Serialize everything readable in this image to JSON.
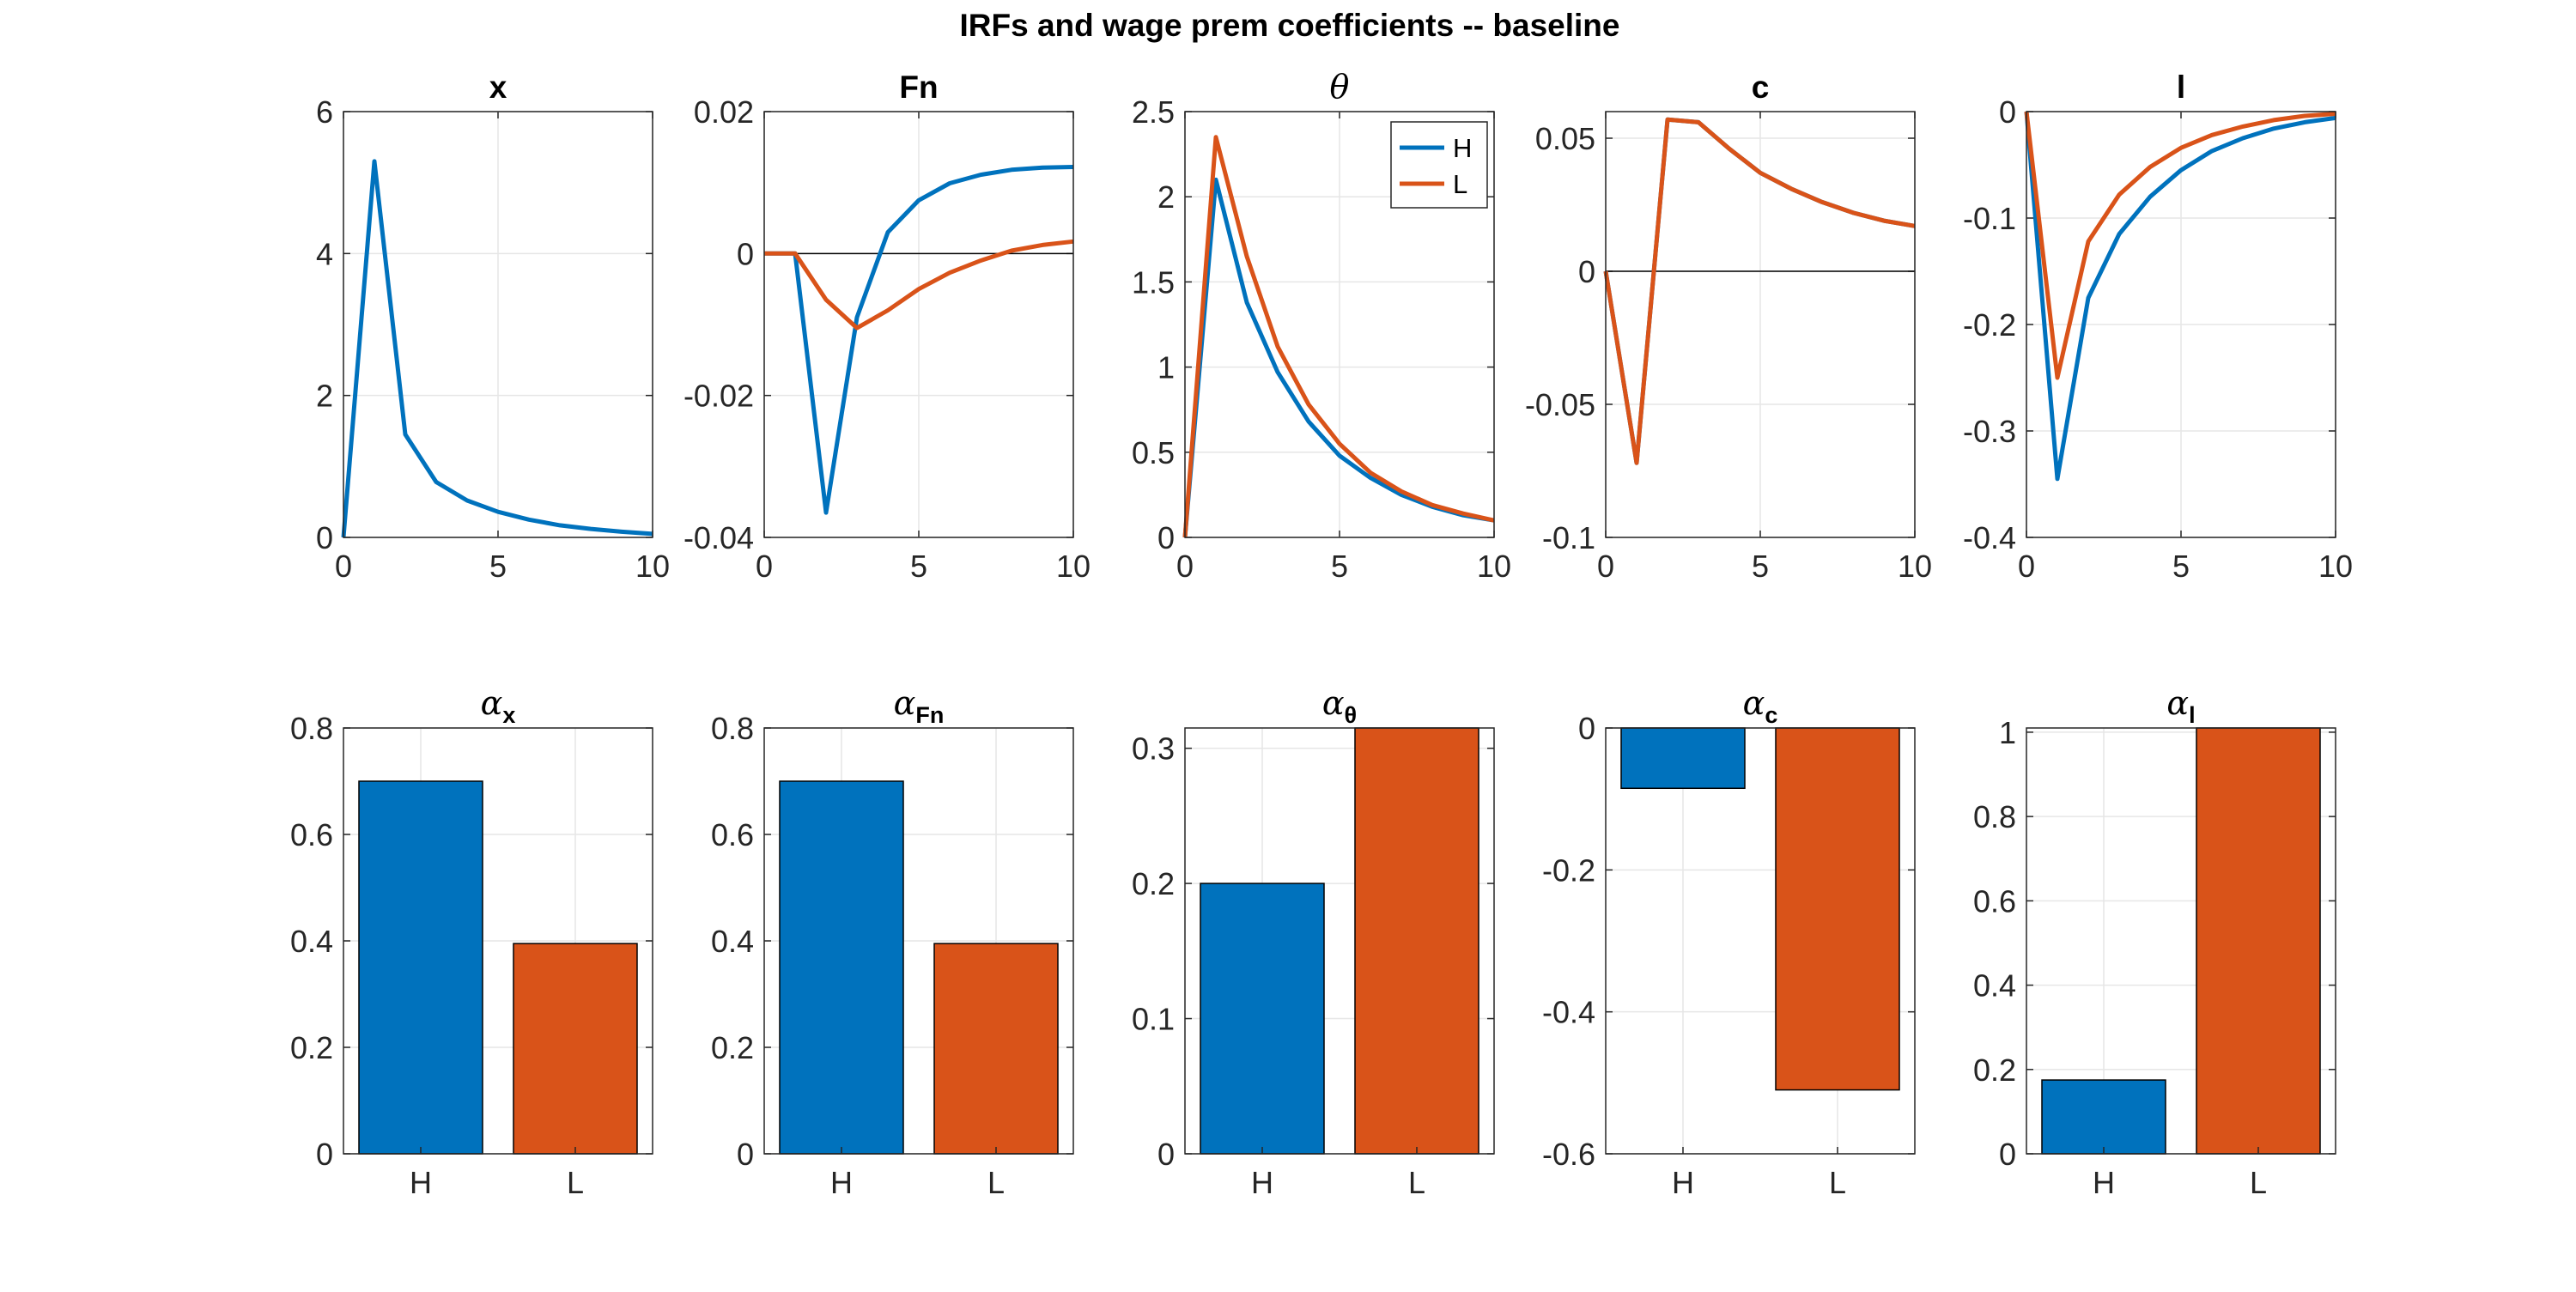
{
  "title": "IRFs and wage prem coefficients -- baseline",
  "colors": {
    "H": "#0072BD",
    "L": "#D95319",
    "axis": "#262626",
    "grid": "#e6e6e6",
    "zero_line": "#000000"
  },
  "legend": {
    "entries": [
      "H",
      "L"
    ],
    "location": "top-right"
  },
  "chart_data": [
    {
      "type": "line",
      "title": "x",
      "title_sub": "",
      "title_greek": false,
      "x": [
        0,
        1,
        2,
        3,
        4,
        5,
        6,
        7,
        8,
        9,
        10
      ],
      "xlim": [
        0,
        10
      ],
      "ylim": [
        0,
        6
      ],
      "xticks": [
        0,
        5,
        10
      ],
      "xtick_labels": [
        "0",
        "5",
        "10"
      ],
      "yticks": [
        0,
        2,
        4,
        6
      ],
      "ytick_labels": [
        "0",
        "2",
        "4",
        "6"
      ],
      "zero_line": false,
      "legend": false,
      "series": [
        {
          "name": "H",
          "values": [
            0,
            5.3,
            1.45,
            0.78,
            0.52,
            0.36,
            0.25,
            0.17,
            0.12,
            0.08,
            0.05
          ]
        }
      ]
    },
    {
      "type": "line",
      "title": "Fn",
      "title_sub": "",
      "title_greek": false,
      "x": [
        0,
        1,
        2,
        3,
        4,
        5,
        6,
        7,
        8,
        9,
        10
      ],
      "xlim": [
        0,
        10
      ],
      "ylim": [
        -0.04,
        0.02
      ],
      "xticks": [
        0,
        5,
        10
      ],
      "xtick_labels": [
        "0",
        "5",
        "10"
      ],
      "yticks": [
        -0.04,
        -0.02,
        0,
        0.02
      ],
      "ytick_labels": [
        "-0.04",
        "-0.02",
        "0",
        "0.02"
      ],
      "zero_line": true,
      "legend": false,
      "series": [
        {
          "name": "H",
          "values": [
            0,
            0,
            -0.0365,
            -0.009,
            0.003,
            0.0075,
            0.0099,
            0.0111,
            0.0118,
            0.0121,
            0.0122
          ]
        },
        {
          "name": "L",
          "values": [
            0,
            0,
            -0.0065,
            -0.0105,
            -0.008,
            -0.005,
            -0.0027,
            -0.001,
            0.0004,
            0.0012,
            0.0017
          ]
        }
      ]
    },
    {
      "type": "line",
      "title": "θ",
      "title_sub": "",
      "title_greek": true,
      "x": [
        0,
        1,
        2,
        3,
        4,
        5,
        6,
        7,
        8,
        9,
        10
      ],
      "xlim": [
        0,
        10
      ],
      "ylim": [
        0,
        2.5
      ],
      "xticks": [
        0,
        5,
        10
      ],
      "xtick_labels": [
        "0",
        "5",
        "10"
      ],
      "yticks": [
        0,
        0.5,
        1,
        1.5,
        2,
        2.5
      ],
      "ytick_labels": [
        "0",
        "0.5",
        "1",
        "1.5",
        "2",
        "2.5"
      ],
      "zero_line": false,
      "legend": true,
      "series": [
        {
          "name": "H",
          "values": [
            0,
            2.1,
            1.38,
            0.97,
            0.68,
            0.48,
            0.35,
            0.25,
            0.18,
            0.13,
            0.1
          ]
        },
        {
          "name": "L",
          "values": [
            0,
            2.35,
            1.65,
            1.12,
            0.78,
            0.55,
            0.38,
            0.27,
            0.19,
            0.14,
            0.1
          ]
        }
      ]
    },
    {
      "type": "line",
      "title": "c",
      "title_sub": "",
      "title_greek": false,
      "x": [
        0,
        1,
        2,
        3,
        4,
        5,
        6,
        7,
        8,
        9,
        10
      ],
      "xlim": [
        0,
        10
      ],
      "ylim": [
        -0.1,
        0.06
      ],
      "xticks": [
        0,
        5,
        10
      ],
      "xtick_labels": [
        "0",
        "5",
        "10"
      ],
      "yticks": [
        -0.1,
        -0.05,
        0,
        0.05
      ],
      "ytick_labels": [
        "-0.1",
        "-0.05",
        "0",
        "0.05"
      ],
      "zero_line": true,
      "legend": false,
      "series": [
        {
          "name": "H",
          "values": [
            0,
            -0.072,
            0.057,
            0.056,
            0.046,
            0.037,
            0.031,
            0.026,
            0.022,
            0.019,
            0.017
          ]
        },
        {
          "name": "L",
          "values": [
            0,
            -0.072,
            0.057,
            0.056,
            0.046,
            0.037,
            0.031,
            0.026,
            0.022,
            0.019,
            0.017
          ]
        }
      ]
    },
    {
      "type": "line",
      "title": "l",
      "title_sub": "",
      "title_greek": false,
      "x": [
        0,
        1,
        2,
        3,
        4,
        5,
        6,
        7,
        8,
        9,
        10
      ],
      "xlim": [
        0,
        10
      ],
      "ylim": [
        -0.4,
        0
      ],
      "xticks": [
        0,
        5,
        10
      ],
      "xtick_labels": [
        "0",
        "5",
        "10"
      ],
      "yticks": [
        -0.4,
        -0.3,
        -0.2,
        -0.1,
        0
      ],
      "ytick_labels": [
        "-0.4",
        "-0.3",
        "-0.2",
        "-0.1",
        "0"
      ],
      "zero_line": false,
      "legend": false,
      "series": [
        {
          "name": "H",
          "values": [
            0,
            -0.345,
            -0.175,
            -0.115,
            -0.08,
            -0.055,
            -0.037,
            -0.025,
            -0.016,
            -0.01,
            -0.006
          ]
        },
        {
          "name": "L",
          "values": [
            0,
            -0.25,
            -0.122,
            -0.078,
            -0.052,
            -0.034,
            -0.022,
            -0.014,
            -0.008,
            -0.004,
            -0.002
          ]
        }
      ]
    },
    {
      "type": "bar",
      "title": "α",
      "title_sub": "x",
      "title_greek": true,
      "categories": [
        "H",
        "L"
      ],
      "values": [
        0.7,
        0.395
      ],
      "ylim": [
        0,
        0.8
      ],
      "yticks": [
        0,
        0.2,
        0.4,
        0.6,
        0.8
      ],
      "ytick_labels": [
        "0",
        "0.2",
        "0.4",
        "0.6",
        "0.8"
      ]
    },
    {
      "type": "bar",
      "title": "α",
      "title_sub": "Fn",
      "title_greek": true,
      "categories": [
        "H",
        "L"
      ],
      "values": [
        0.7,
        0.395
      ],
      "ylim": [
        0,
        0.8
      ],
      "yticks": [
        0,
        0.2,
        0.4,
        0.6,
        0.8
      ],
      "ytick_labels": [
        "0",
        "0.2",
        "0.4",
        "0.6",
        "0.8"
      ]
    },
    {
      "type": "bar",
      "title": "α",
      "title_sub": "θ",
      "title_greek": true,
      "categories": [
        "H",
        "L"
      ],
      "values": [
        0.2,
        0.315
      ],
      "ylim": [
        0,
        0.315
      ],
      "yticks": [
        0,
        0.1,
        0.2,
        0.3
      ],
      "ytick_labels": [
        "0",
        "0.1",
        "0.2",
        "0.3"
      ]
    },
    {
      "type": "bar",
      "title": "α",
      "title_sub": "c",
      "title_greek": true,
      "categories": [
        "H",
        "L"
      ],
      "values": [
        -0.085,
        -0.51
      ],
      "ylim": [
        -0.6,
        0
      ],
      "yticks": [
        -0.6,
        -0.4,
        -0.2,
        0
      ],
      "ytick_labels": [
        "-0.6",
        "-0.4",
        "-0.2",
        "0"
      ]
    },
    {
      "type": "bar",
      "title": "α",
      "title_sub": "l",
      "title_greek": true,
      "categories": [
        "H",
        "L"
      ],
      "values": [
        0.175,
        1.01
      ],
      "ylim": [
        0,
        1.01
      ],
      "yticks": [
        0,
        0.2,
        0.4,
        0.6,
        0.8,
        1
      ],
      "ytick_labels": [
        "0",
        "0.2",
        "0.4",
        "0.6",
        "0.8",
        "1"
      ]
    }
  ]
}
